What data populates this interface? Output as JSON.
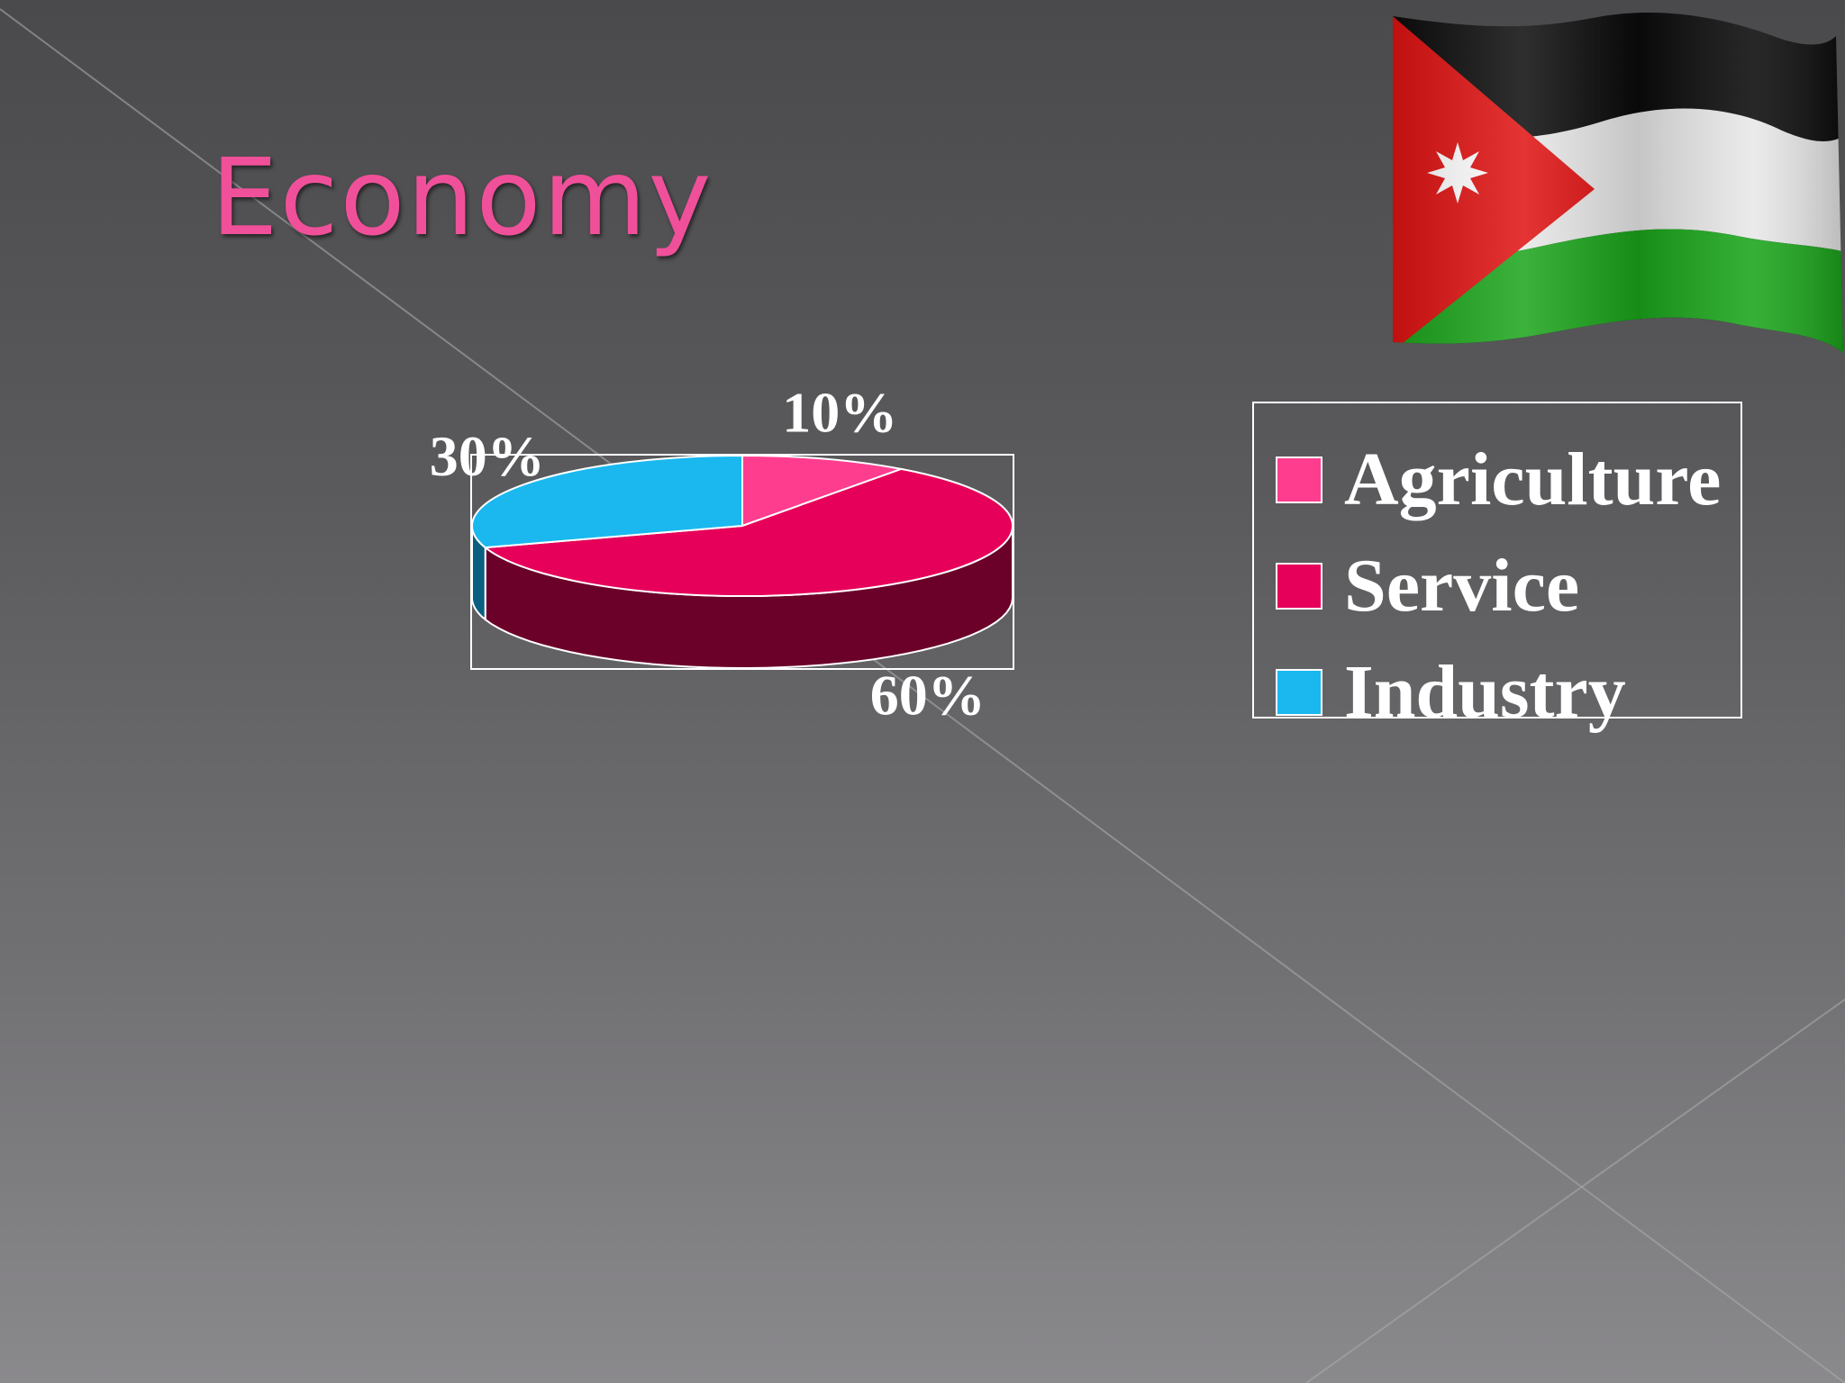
{
  "slide": {
    "title": "Economy"
  },
  "colors": {
    "agriculture": "#ff3d8f",
    "service": "#e6005a",
    "industry": "#1ab8ef",
    "service_side": "#6b0029",
    "industry_side": "#0a5f80",
    "title": "#f0509a"
  },
  "flag": {
    "country": "Jordan",
    "icon": "jordan-flag-icon"
  },
  "chart_data": {
    "type": "pie",
    "title": "",
    "style": "3d",
    "legend_position": "right",
    "categories": [
      "Agriculture",
      "Service",
      "Industry"
    ],
    "values": [
      10,
      60,
      30
    ],
    "labels": [
      "10%",
      "60%",
      "30%"
    ]
  }
}
